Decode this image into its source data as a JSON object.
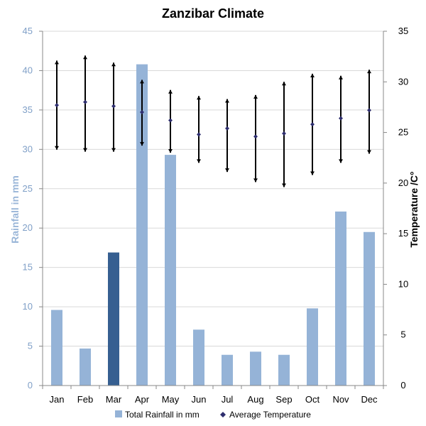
{
  "chart_data": {
    "type": "bar+errorbar",
    "title": "Zanzibar Climate",
    "categories": [
      "Jan",
      "Feb",
      "Mar",
      "Apr",
      "May",
      "Jun",
      "Jul",
      "Aug",
      "Sep",
      "Oct",
      "Nov",
      "Dec"
    ],
    "rainfall": {
      "name": "Total Rainfall in mm",
      "axis": "left",
      "values": [
        9.6,
        4.7,
        16.9,
        40.8,
        29.3,
        7.1,
        3.9,
        4.3,
        3.9,
        9.8,
        22.1,
        19.5
      ],
      "color": "#95b3d7",
      "highlight_index": 2,
      "highlight_color": "#365f91"
    },
    "temperature": {
      "name": "Average Temperature",
      "axis": "right",
      "avg": [
        27.7,
        28.0,
        27.6,
        27.0,
        26.2,
        24.8,
        25.4,
        24.6,
        24.9,
        25.8,
        26.4,
        27.2
      ],
      "max": [
        32.1,
        32.6,
        31.9,
        30.2,
        29.2,
        28.6,
        28.3,
        28.7,
        30.0,
        30.8,
        30.6,
        31.2
      ],
      "min": [
        23.3,
        23.1,
        23.1,
        23.7,
        23.0,
        22.0,
        21.1,
        20.1,
        19.6,
        20.8,
        22.0,
        22.9
      ],
      "color": "#000000",
      "marker_color": "#2e2e6e"
    },
    "y_left": {
      "label": "Rainfall in mm",
      "min": 0,
      "max": 45,
      "step": 5,
      "ticks": [
        "0",
        "5",
        "10",
        "15",
        "20",
        "25",
        "30",
        "35",
        "40",
        "45"
      ]
    },
    "y_right": {
      "label": "Temperature /C°",
      "min": 0,
      "max": 35,
      "step": 5,
      "ticks": [
        "0",
        "5",
        "10",
        "15",
        "20",
        "25",
        "30",
        "35"
      ]
    },
    "grid": true,
    "legend_position": "bottom",
    "legend": [
      "Total Rainfall in mm",
      "Average Temperature"
    ]
  }
}
